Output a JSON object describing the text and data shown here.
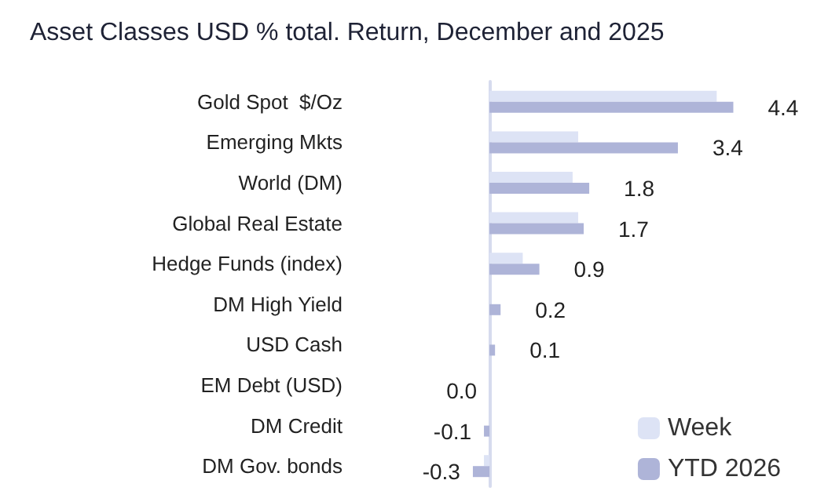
{
  "chart_data": {
    "type": "bar",
    "orientation": "horizontal",
    "title": "Asset Classes USD % total. Return, December and 2025",
    "categories": [
      "Gold Spot  $/Oz",
      "Emerging Mkts",
      "World (DM)",
      "Global Real Estate",
      "Hedge Funds (index)",
      "DM High Yield",
      "USD Cash",
      "EM Debt (USD)",
      "DM Credit",
      "DM Gov. bonds"
    ],
    "series": [
      {
        "name": "Week",
        "color": "#dde3f5",
        "values": [
          4.1,
          1.6,
          1.5,
          1.6,
          0.6,
          null,
          null,
          null,
          null,
          -0.1
        ]
      },
      {
        "name": "YTD 2026",
        "color": "#aeb4d8",
        "values": [
          4.4,
          3.4,
          1.8,
          1.7,
          0.9,
          0.2,
          0.1,
          0.0,
          -0.1,
          -0.3
        ],
        "value_labels": [
          "4.4",
          "3.4",
          "1.8",
          "1.7",
          "0.9",
          "0.2",
          "0.1",
          "0.0",
          "-0.1",
          "-0.3"
        ]
      }
    ],
    "legend": "bottom right",
    "tick_labels": "y",
    "grid": false
  }
}
